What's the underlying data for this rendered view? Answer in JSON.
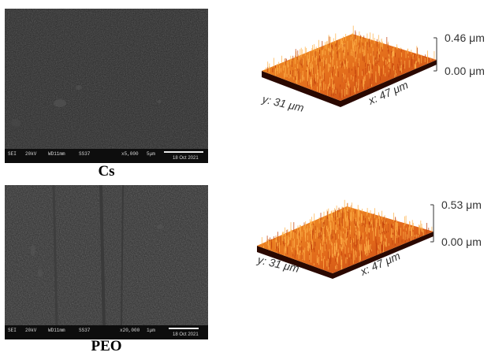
{
  "panels": [
    {
      "caption": "Cs",
      "sem": {
        "info": [
          "SEI",
          "20kV",
          "WD11mm",
          "SS37",
          "x5,000",
          "5μm"
        ],
        "date": "18 Oct 2021"
      },
      "afm": {
        "z_max_label": "0.46 μm",
        "z_min_label": "0.00 μm",
        "y_axis_label": "y: 31 μm",
        "x_axis_label": "x: 47 μm"
      }
    },
    {
      "caption": "PEO",
      "sem": {
        "info": [
          "SEI",
          "20kV",
          "WD11mm",
          "SS37",
          "x20,000",
          "1μm"
        ],
        "date": "18 Oct 2021"
      },
      "afm": {
        "z_max_label": "0.53 μm",
        "z_min_label": "0.00 μm",
        "y_axis_label": "y: 31 μm",
        "x_axis_label": "x: 47 μm"
      }
    }
  ],
  "colors": {
    "sem_background": "#2a2a2a",
    "afm_surface_top": "#f08a1e",
    "afm_surface_shadow": "#5a1000",
    "afm_base": "#1a0500"
  }
}
